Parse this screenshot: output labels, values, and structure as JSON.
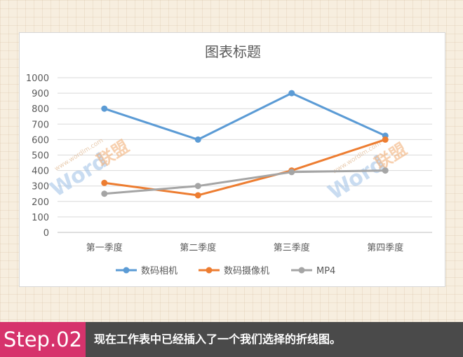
{
  "chart_data": {
    "type": "line",
    "title": "图表标题",
    "categories": [
      "第一季度",
      "第二季度",
      "第三季度",
      "第四季度"
    ],
    "series": [
      {
        "name": "数码相机",
        "color": "#5b9bd5",
        "values": [
          800,
          600,
          900,
          625
        ]
      },
      {
        "name": "数码摄像机",
        "color": "#ed7d31",
        "values": [
          320,
          240,
          400,
          600
        ]
      },
      {
        "name": "MP4",
        "color": "#a5a5a5",
        "values": [
          250,
          300,
          390,
          400
        ]
      }
    ],
    "ylim": [
      0,
      1000
    ],
    "yticks": [
      0,
      100,
      200,
      300,
      400,
      500,
      600,
      700,
      800,
      900,
      1000
    ],
    "grid": true,
    "legend_position": "bottom"
  },
  "watermark": {
    "brand": "Word",
    "cn": "联盟",
    "url": "www.wordlm.com"
  },
  "footer": {
    "step": "Step.02",
    "caption": "现在工作表中已经插入了一个我们选择的折线图。",
    "step_color": "#d6336c",
    "bar_color": "#4a4a4a"
  }
}
